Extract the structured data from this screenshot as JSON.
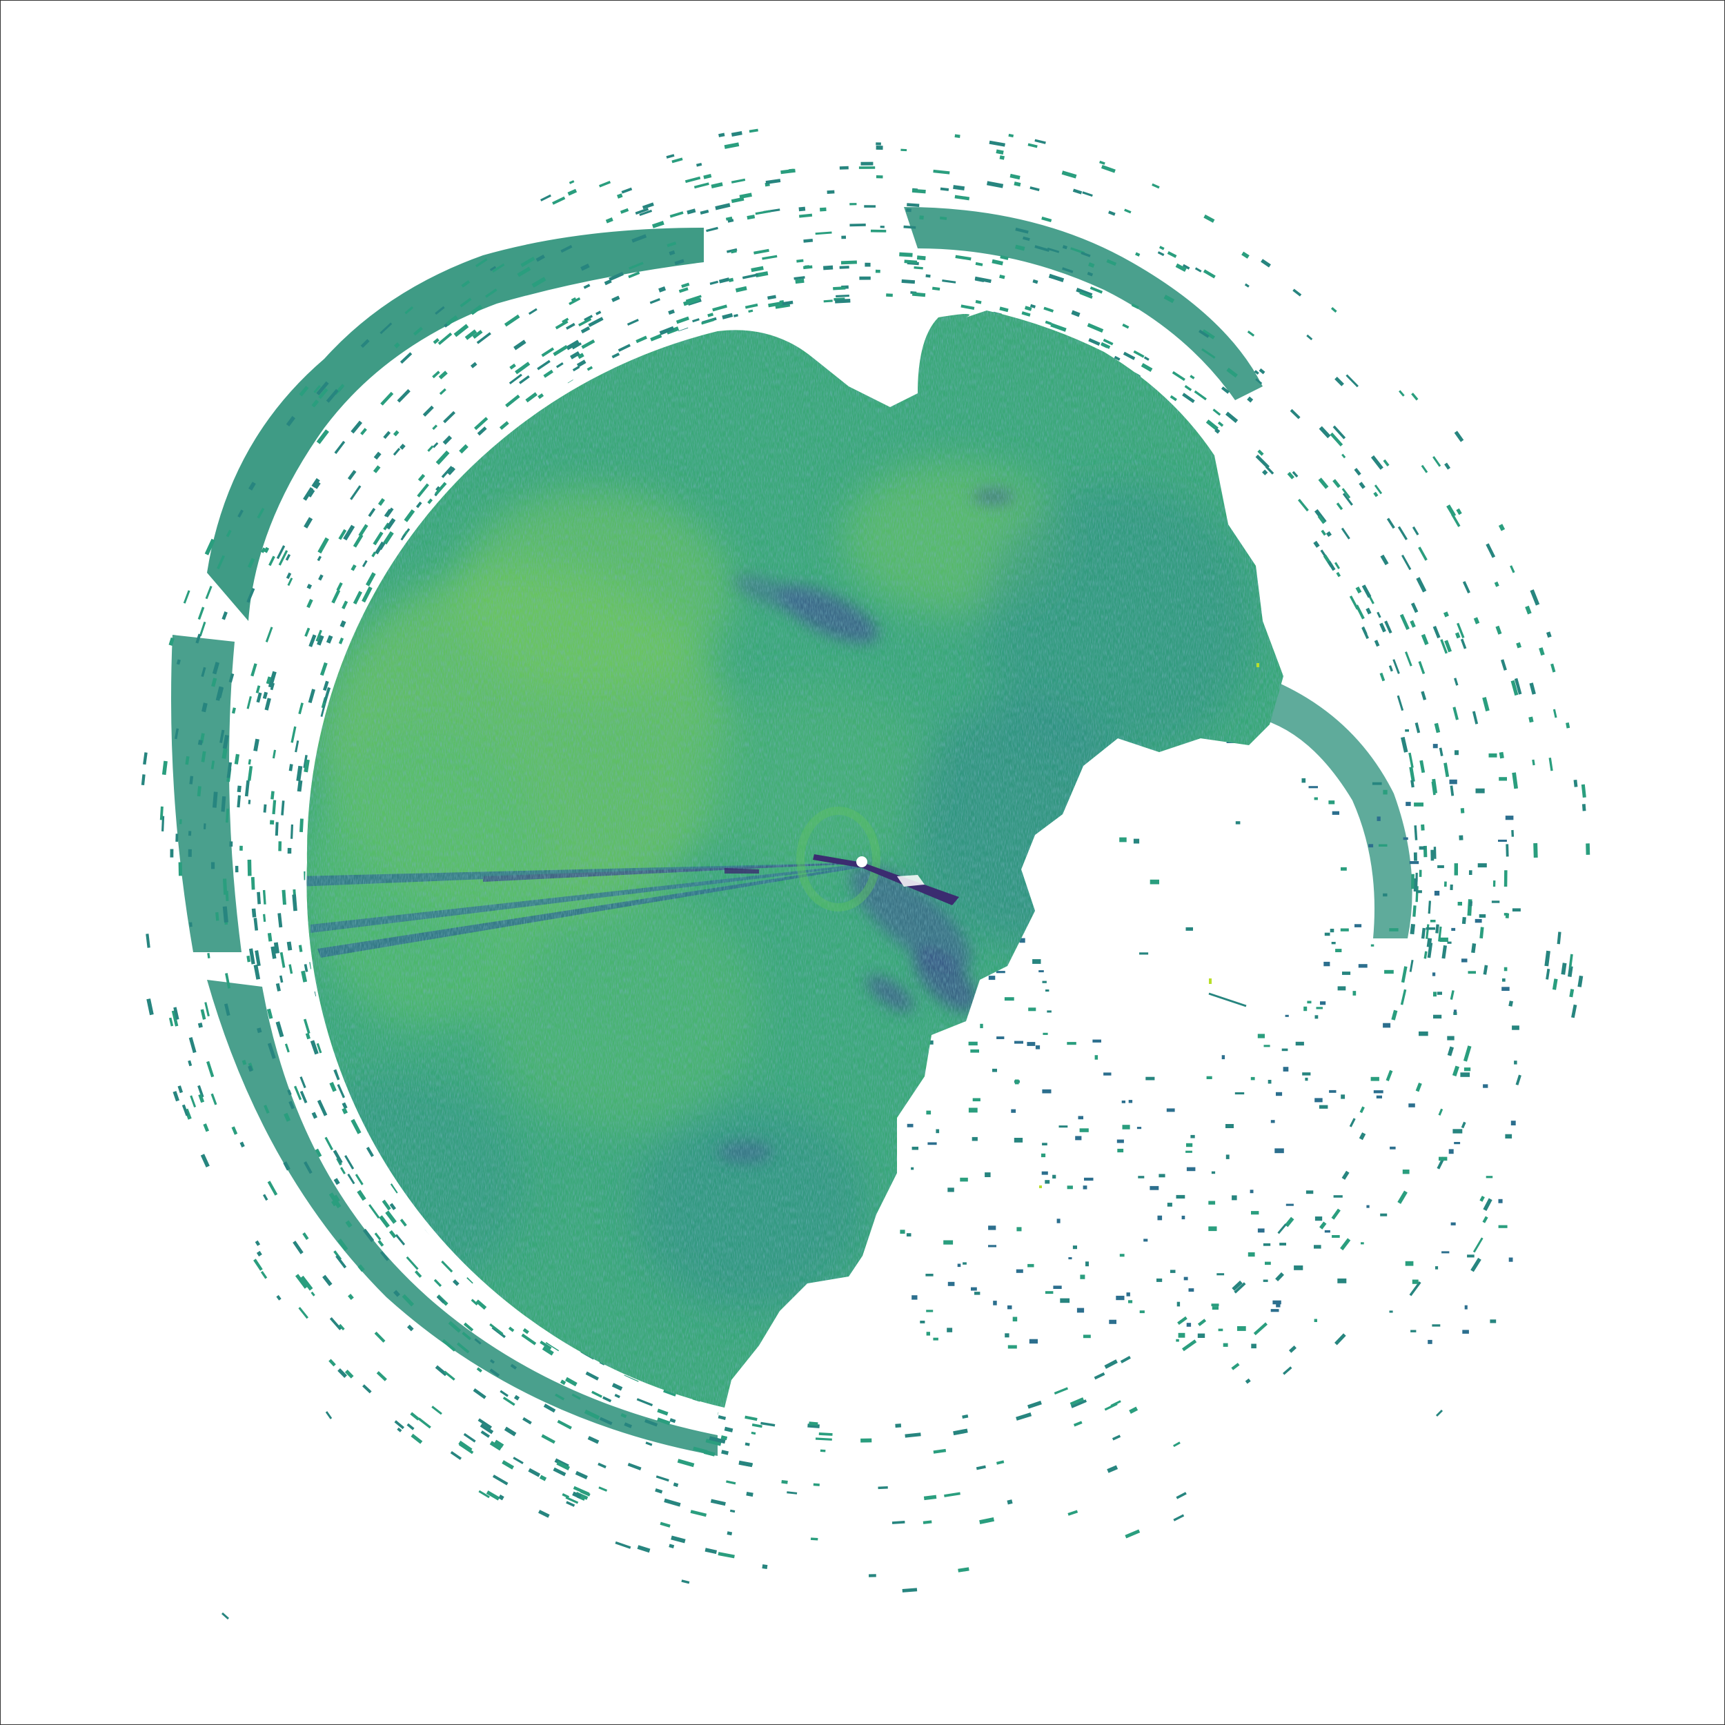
{
  "image": {
    "kind": "radar-ppi-scan",
    "colormap": "viridis",
    "colors": {
      "background": "#ffffff",
      "frame": "#333333",
      "main_fill": "#3fae75",
      "fill_light": "#7ccf55",
      "fill_mid": "#2ea27c",
      "fill_dark": "#2c6f8e",
      "shadow_dark": "#3b4f8a",
      "very_dark": "#3b2c70",
      "speckle": "#27857f",
      "speckle_alt": "#2a9e7e",
      "highlight_yellow": "#b8de29",
      "center_marker": "#ffffff"
    },
    "features": [
      "dense-near-range-echo-disk",
      "sparse-far-range-clutter-ring",
      "clear-gap-ring-west",
      "beam-blockage-streaks-west",
      "clear-air-region-southeast",
      "radar-site-marker"
    ]
  }
}
